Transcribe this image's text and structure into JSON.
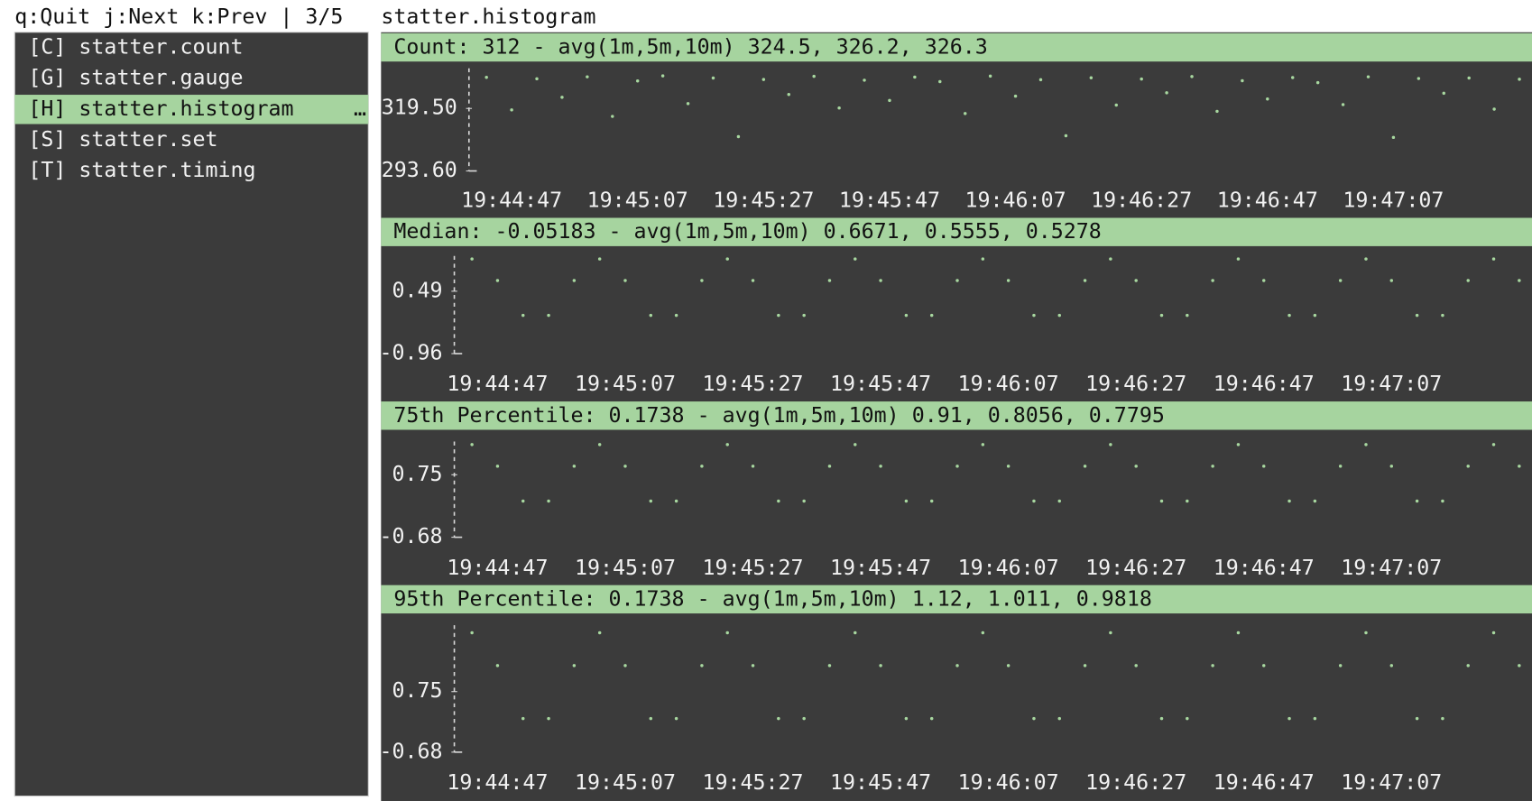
{
  "header": {
    "keys": "q:Quit j:Next k:Prev | 3/5",
    "title": "statter.histogram"
  },
  "menu": {
    "items": [
      "[C] statter.count",
      "[G] statter.gauge",
      "[H] statter.histogram",
      "[S] statter.set",
      "[T] statter.timing"
    ],
    "selected": 2,
    "overflow": "…"
  },
  "chart_data": [
    {
      "type": "scatter",
      "title": "Count: 312 - avg(1m,5m,10m) 324.5, 326.2, 326.3",
      "color": "#a8d8a0",
      "x": [
        71083,
        71087,
        71091,
        71095,
        71099,
        71103,
        71107,
        71111,
        71115,
        71119,
        71123,
        71127,
        71131,
        71135,
        71139,
        71143,
        71147,
        71151,
        71155,
        71159,
        71163,
        71167,
        71171,
        71175,
        71179,
        71183,
        71187,
        71191,
        71195,
        71199,
        71203,
        71207,
        71211,
        71215,
        71219,
        71223,
        71227,
        71231,
        71235,
        71239,
        71243,
        71247
      ],
      "values": [
        332.4,
        318.9,
        331.8,
        324.1,
        332.6,
        316.2,
        330.9,
        333.0,
        321.5,
        332.1,
        307.8,
        331.5,
        325.3,
        332.8,
        319.7,
        331.2,
        322.8,
        332.5,
        330.6,
        317.4,
        332.9,
        324.6,
        331.4,
        308.2,
        332.2,
        320.9,
        331.7,
        326.0,
        332.7,
        318.3,
        331.0,
        323.4,
        332.3,
        330.2,
        321.1,
        332.6,
        307.5,
        331.9,
        325.8,
        332.1,
        319.2,
        331.6
      ],
      "xlim": [
        71081,
        71249
      ],
      "ylim": [
        293.6,
        336.1
      ],
      "xticks": [
        {
          "value": 71087,
          "label": "19:44:47"
        },
        {
          "value": 71107,
          "label": "19:45:07"
        },
        {
          "value": 71127,
          "label": "19:45:27"
        },
        {
          "value": 71147,
          "label": "19:45:47"
        },
        {
          "value": 71167,
          "label": "19:46:07"
        },
        {
          "value": 71187,
          "label": "19:46:27"
        },
        {
          "value": 71207,
          "label": "19:46:47"
        },
        {
          "value": 71227,
          "label": "19:47:07"
        }
      ],
      "yticks": [
        {
          "value": 293.6,
          "label": "293.60"
        },
        {
          "value": 319.5,
          "label": "319.50"
        }
      ]
    },
    {
      "type": "scatter",
      "title": "Median: -0.05183 - avg(1m,5m,10m) 0.6671, 0.5555, 0.5278",
      "color": "#a8d8a0",
      "x": [
        71083,
        71087,
        71091,
        71095,
        71099,
        71103,
        71107,
        71111,
        71115,
        71119,
        71123,
        71127,
        71131,
        71135,
        71139,
        71143,
        71147,
        71151,
        71155,
        71159,
        71163,
        71167,
        71171,
        71175,
        71179,
        71183,
        71187,
        71191,
        71195,
        71199,
        71203,
        71207,
        71211,
        71215,
        71219,
        71223,
        71227,
        71231,
        71235,
        71239,
        71243,
        71247
      ],
      "values": [
        1.24,
        0.739,
        -0.072,
        -0.072,
        0.739,
        1.24,
        0.739,
        -0.072,
        -0.072,
        0.739,
        1.24,
        0.739,
        -0.072,
        -0.072,
        0.739,
        1.24,
        0.739,
        -0.072,
        -0.072,
        0.739,
        1.24,
        0.739,
        -0.072,
        -0.072,
        0.739,
        1.24,
        0.739,
        -0.072,
        -0.072,
        0.739,
        1.24,
        0.739,
        -0.072,
        -0.072,
        0.739,
        1.24,
        0.739,
        -0.072,
        -0.072,
        0.739,
        1.24,
        0.739
      ],
      "xlim": [
        71081,
        71249
      ],
      "ylim": [
        -0.96,
        1.31
      ],
      "xticks": [
        {
          "value": 71087,
          "label": "19:44:47"
        },
        {
          "value": 71107,
          "label": "19:45:07"
        },
        {
          "value": 71127,
          "label": "19:45:27"
        },
        {
          "value": 71147,
          "label": "19:45:47"
        },
        {
          "value": 71167,
          "label": "19:46:07"
        },
        {
          "value": 71187,
          "label": "19:46:27"
        },
        {
          "value": 71207,
          "label": "19:46:47"
        },
        {
          "value": 71227,
          "label": "19:47:07"
        }
      ],
      "yticks": [
        -0.96,
        0.49
      ]
    },
    {
      "type": "scatter",
      "title": "75th Percentile: 0.1738 - avg(1m,5m,10m) 0.91, 0.8056, 0.7795",
      "color": "#a8d8a0",
      "x": [
        71083,
        71087,
        71091,
        71095,
        71099,
        71103,
        71107,
        71111,
        71115,
        71119,
        71123,
        71127,
        71131,
        71135,
        71139,
        71143,
        71147,
        71151,
        71155,
        71159,
        71163,
        71167,
        71171,
        71175,
        71179,
        71183,
        71187,
        71191,
        71195,
        71199,
        71203,
        71207,
        71211,
        71215,
        71219,
        71223,
        71227,
        71231,
        71235,
        71239,
        71243,
        71247
      ],
      "values": [
        1.44,
        0.946,
        0.147,
        0.147,
        0.946,
        1.44,
        0.946,
        0.147,
        0.147,
        0.946,
        1.44,
        0.946,
        0.147,
        0.147,
        0.946,
        1.44,
        0.946,
        0.147,
        0.147,
        0.946,
        1.44,
        0.946,
        0.147,
        0.147,
        0.946,
        1.44,
        0.946,
        0.147,
        0.147,
        0.946,
        1.44,
        0.946,
        0.147,
        0.147,
        0.946,
        1.44,
        0.946,
        0.147,
        0.147,
        0.946,
        1.44,
        0.946
      ],
      "xlim": [
        71081,
        71249
      ],
      "ylim": [
        -0.68,
        1.51
      ],
      "xticks": [
        {
          "value": 71087,
          "label": "19:44:47"
        },
        {
          "value": 71107,
          "label": "19:45:07"
        },
        {
          "value": 71127,
          "label": "19:45:27"
        },
        {
          "value": 71147,
          "label": "19:45:47"
        },
        {
          "value": 71167,
          "label": "19:46:07"
        },
        {
          "value": 71187,
          "label": "19:46:27"
        },
        {
          "value": 71207,
          "label": "19:46:47"
        },
        {
          "value": 71227,
          "label": "19:47:07"
        }
      ],
      "yticks": [
        -0.68,
        0.75
      ]
    },
    {
      "type": "scatter",
      "title": "95th Percentile: 0.1738 - avg(1m,5m,10m) 1.12, 1.011, 0.9818",
      "color": "#a8d8a0",
      "x": [
        71083,
        71087,
        71091,
        71095,
        71099,
        71103,
        71107,
        71111,
        71115,
        71119,
        71123,
        71127,
        71131,
        71135,
        71139,
        71143,
        71147,
        71151,
        71155,
        71159,
        71163,
        71167,
        71171,
        71175,
        71179,
        71183,
        71187,
        71191,
        71195,
        71199,
        71203,
        71207,
        71211,
        71215,
        71219,
        71223,
        71227,
        71231,
        71235,
        71239,
        71243,
        71247
      ],
      "values": [
        2.14,
        1.366,
        0.114,
        0.114,
        1.366,
        2.14,
        1.366,
        0.114,
        0.114,
        1.366,
        2.14,
        1.366,
        0.114,
        0.114,
        1.366,
        2.14,
        1.366,
        0.114,
        0.114,
        1.366,
        2.14,
        1.366,
        0.114,
        0.114,
        1.366,
        2.14,
        1.366,
        0.114,
        0.114,
        1.366,
        2.14,
        1.366,
        0.114,
        0.114,
        1.366,
        2.14,
        1.366,
        0.114,
        0.114,
        1.366,
        2.14,
        1.366
      ],
      "xlim": [
        71081,
        71249
      ],
      "ylim": [
        -0.68,
        2.32
      ],
      "xticks": [
        {
          "value": 71087,
          "label": "19:44:47"
        },
        {
          "value": 71107,
          "label": "19:45:07"
        },
        {
          "value": 71127,
          "label": "19:45:27"
        },
        {
          "value": 71147,
          "label": "19:45:47"
        },
        {
          "value": 71167,
          "label": "19:46:07"
        },
        {
          "value": 71187,
          "label": "19:46:27"
        },
        {
          "value": 71207,
          "label": "19:46:47"
        },
        {
          "value": 71227,
          "label": "19:47:07"
        }
      ],
      "yticks": [
        -0.68,
        0.75
      ]
    }
  ]
}
